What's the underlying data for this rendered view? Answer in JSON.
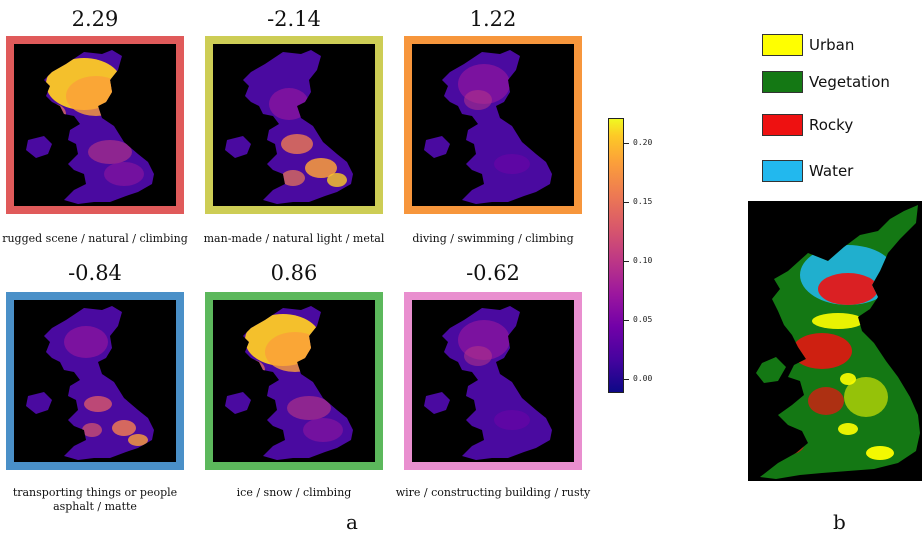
{
  "panel_a": {
    "label": "a",
    "maps": [
      {
        "score": "2.29",
        "caption_line1": "rugged scene / natural / climbing",
        "caption_line2": "",
        "border_color": "#e05a5a",
        "hotspot": "north"
      },
      {
        "score": "-2.14",
        "caption_line1": "man-made / natural light / metal",
        "caption_line2": "",
        "border_color": "#cdcd55",
        "hotspot": "south"
      },
      {
        "score": "1.22",
        "caption_line1": "diving / swimming / climbing",
        "caption_line2": "",
        "border_color": "#f7963c",
        "hotspot": "faint"
      },
      {
        "score": "-0.84",
        "caption_line1": "transporting things or people",
        "caption_line2": "asphalt / matte",
        "border_color": "#4a90c8",
        "hotspot": "cities"
      },
      {
        "score": "0.86",
        "caption_line1": "ice / snow / climbing",
        "caption_line2": "",
        "border_color": "#5cb85c",
        "hotspot": "north"
      },
      {
        "score": "-0.62",
        "caption_line1": "wire / constructing building / rusty",
        "caption_line2": "",
        "border_color": "#e98fcf",
        "hotspot": "faint"
      }
    ],
    "colorbar": {
      "colormap": "plasma",
      "ticks": [
        "0.20",
        "0.15",
        "0.10",
        "0.05",
        "0.00"
      ]
    }
  },
  "panel_b": {
    "label": "b",
    "legend": [
      {
        "label": "Urban",
        "color": "#ffff00"
      },
      {
        "label": "Vegetation",
        "color": "#147814"
      },
      {
        "label": "Rocky",
        "color": "#ee1111"
      },
      {
        "label": "Water",
        "color": "#22b8ee"
      }
    ]
  }
}
